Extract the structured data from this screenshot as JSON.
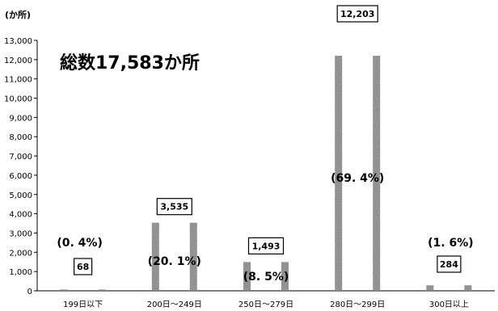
{
  "unit_label": "(か所)",
  "total_label": "総数17,583か所",
  "chart_data": {
    "type": "bar",
    "categories": [
      "199日以下",
      "200日～249日",
      "250日～279日",
      "280日～299日",
      "300日以上"
    ],
    "values": [
      68,
      3535,
      1493,
      12203,
      284
    ],
    "value_labels": [
      "68",
      "3,535",
      "1,493",
      "12,203",
      "284"
    ],
    "percent_labels": [
      "(0. 4%)",
      "(20. 1%)",
      "(8. 5%)",
      "(69. 4%)",
      "(1. 6%)"
    ],
    "ylim": [
      0,
      13000
    ],
    "yticks": [
      0,
      1000,
      2000,
      3000,
      4000,
      5000,
      6000,
      7000,
      8000,
      9000,
      10000,
      11000,
      12000,
      13000
    ],
    "ytick_labels": [
      "0",
      "1,000",
      "2,000",
      "3,000",
      "4,000",
      "5,000",
      "6,000",
      "7,000",
      "8,000",
      "9,000",
      "10,000",
      "11,000",
      "12,000",
      "13,000"
    ],
    "grid": false,
    "bar_color": "#9a9a9a"
  }
}
